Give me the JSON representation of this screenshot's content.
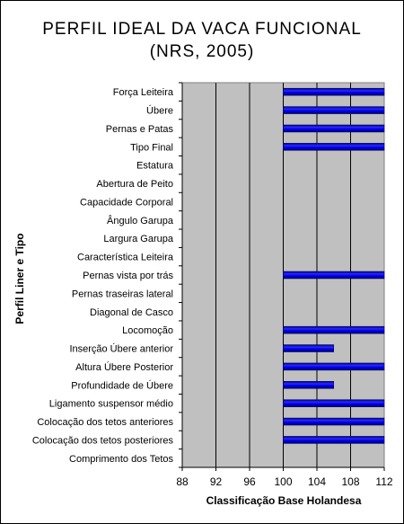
{
  "chart_data": {
    "type": "bar",
    "orientation": "horizontal",
    "title_line1": "PERFIL IDEAL DA VACA FUNCIONAL",
    "title_line2": "(NRS, 2005)",
    "xlabel": "Classificação Base Holandesa",
    "ylabel": "Perfil Liner e Tipo",
    "xlim": [
      88,
      112
    ],
    "xticks": [
      "88",
      "92",
      "96",
      "100",
      "104",
      "108",
      "112"
    ],
    "grid": "vertical",
    "categories": [
      "Força Leiteira",
      "Úbere",
      "Pernas e Patas",
      "Tipo Final",
      "Estatura",
      "Abertura de Peito",
      "Capacidade Corporal",
      "Ângulo Garupa",
      "Largura Garupa",
      "Característica Leiteira",
      "Pernas vista por trás",
      "Pernas traseiras lateral",
      "Diagonal de Casco",
      "Locomoção",
      "Inserção Úbere anterior",
      "Altura Úbere Posterior",
      "Profundidade de Úbere",
      "Ligamento suspensor médio",
      "Colocação dos tetos anteriores",
      "Colocação dos tetos posteriores",
      "Comprimento dos Tetos"
    ],
    "series": [
      {
        "bars": [
          [
            100,
            112
          ],
          [
            100,
            112
          ],
          [
            100,
            112
          ],
          [
            100,
            112
          ],
          null,
          null,
          null,
          null,
          null,
          null,
          [
            100,
            112
          ],
          null,
          null,
          [
            100,
            112
          ],
          [
            100,
            106
          ],
          [
            100,
            112
          ],
          [
            100,
            106
          ],
          [
            100,
            112
          ],
          [
            100,
            112
          ],
          [
            100,
            112
          ],
          null
        ]
      }
    ],
    "colors": {
      "bar": "#0000ff",
      "plot_bg": "#c0c0c0",
      "grid": "#000000"
    }
  }
}
